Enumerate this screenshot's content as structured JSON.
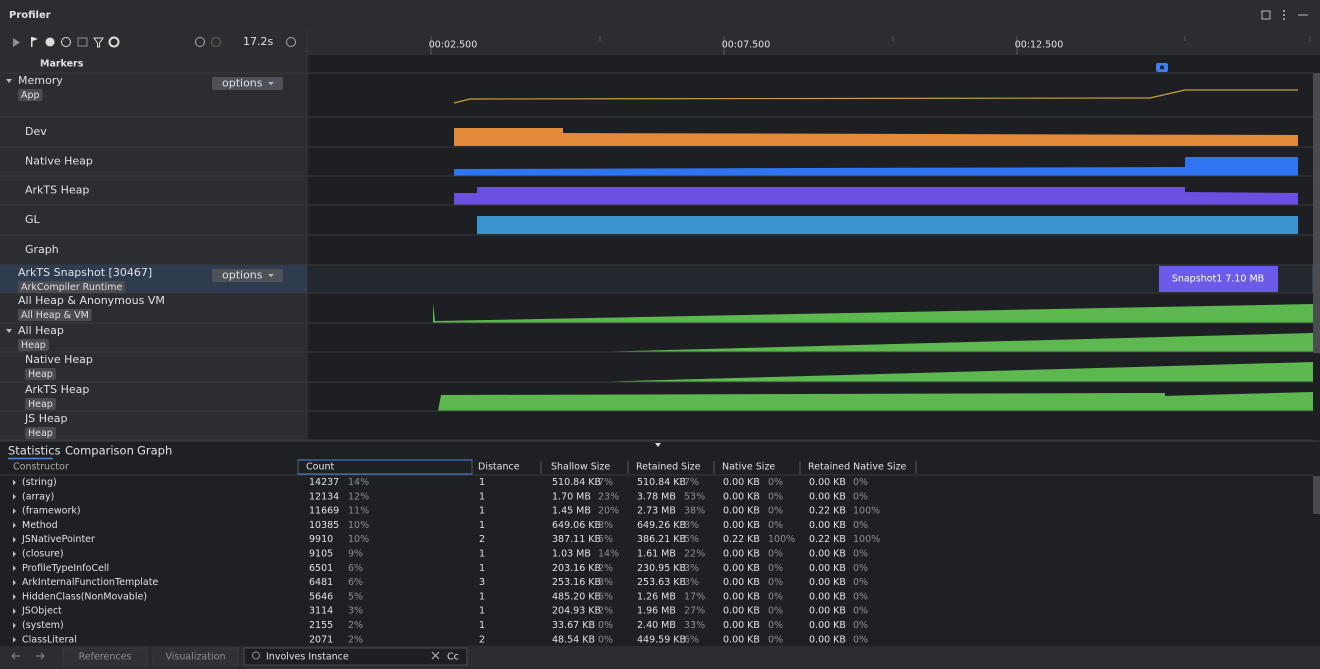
{
  "header": {
    "title": "Profiler"
  },
  "toolbar": {
    "time": "17.2s"
  },
  "timeline": {
    "ticks": [
      "00:02.500",
      "00:07.500",
      "00:12.500"
    ]
  },
  "tracks": [
    {
      "label": "Markers"
    },
    {
      "label": "Memory",
      "tag": "App",
      "options": "options"
    },
    {
      "label": "Dev"
    },
    {
      "label": "Native Heap"
    },
    {
      "label": "ArkTS Heap"
    },
    {
      "label": "GL"
    },
    {
      "label": "Graph"
    },
    {
      "label": "ArkTS Snapshot [30467]",
      "tag": "ArkCompiler Runtime",
      "options": "options"
    },
    {
      "label": "All Heap & Anonymous VM",
      "tag": "All Heap & VM"
    },
    {
      "label": "All Heap",
      "tag": "Heap"
    },
    {
      "label": "Native Heap",
      "tag": "Heap"
    },
    {
      "label": "ArkTS Heap",
      "tag": "Heap"
    },
    {
      "label": "JS Heap",
      "tag": "Heap"
    }
  ],
  "snapshot": {
    "label": "Snapshot1 7.10 MB"
  },
  "tabs": [
    "Statistics",
    "Comparison",
    "Graph"
  ],
  "table": {
    "columns": [
      "Constructor",
      "Count",
      "Distance",
      "Shallow Size",
      "Retained Size",
      "Native Size",
      "Retained Native Size"
    ],
    "rows": [
      [
        "(string)",
        "14237",
        "14%",
        "1",
        "510.84 KB",
        "7%",
        "510.84 KB",
        "7%",
        "0.00 KB",
        "0%",
        "0.00 KB",
        "0%"
      ],
      [
        "(array)",
        "12134",
        "12%",
        "1",
        "1.70 MB",
        "23%",
        "3.78 MB",
        "53%",
        "0.00 KB",
        "0%",
        "0.00 KB",
        "0%"
      ],
      [
        "(framework)",
        "11669",
        "11%",
        "1",
        "1.45 MB",
        "20%",
        "2.73 MB",
        "38%",
        "0.00 KB",
        "0%",
        "0.22 KB",
        "100%"
      ],
      [
        "Method",
        "10385",
        "10%",
        "1",
        "649.06 KB",
        "8%",
        "649.26 KB",
        "8%",
        "0.00 KB",
        "0%",
        "0.00 KB",
        "0%"
      ],
      [
        "JSNativePointer",
        "9910",
        "10%",
        "2",
        "387.11 KB",
        "5%",
        "386.21 KB",
        "5%",
        "0.22 KB",
        "100%",
        "0.22 KB",
        "100%"
      ],
      [
        "(closure)",
        "9105",
        "9%",
        "1",
        "1.03 MB",
        "14%",
        "1.61 MB",
        "22%",
        "0.00 KB",
        "0%",
        "0.00 KB",
        "0%"
      ],
      [
        "ProfileTypeInfoCell",
        "6501",
        "6%",
        "1",
        "203.16 KB",
        "2%",
        "230.95 KB",
        "3%",
        "0.00 KB",
        "0%",
        "0.00 KB",
        "0%"
      ],
      [
        "ArkInternalFunctionTemplate",
        "6481",
        "6%",
        "3",
        "253.16 KB",
        "3%",
        "253.63 KB",
        "3%",
        "0.00 KB",
        "0%",
        "0.00 KB",
        "0%"
      ],
      [
        "HiddenClass(NonMovable)",
        "5646",
        "5%",
        "1",
        "485.20 KB",
        "6%",
        "1.26 MB",
        "17%",
        "0.00 KB",
        "0%",
        "0.00 KB",
        "0%"
      ],
      [
        "JSObject",
        "3114",
        "3%",
        "1",
        "204.93 KB",
        "2%",
        "1.96 MB",
        "27%",
        "0.00 KB",
        "0%",
        "0.00 KB",
        "0%"
      ],
      [
        "(system)",
        "2155",
        "2%",
        "1",
        "33.67 KB",
        "0%",
        "2.40 MB",
        "33%",
        "0.00 KB",
        "0%",
        "0.00 KB",
        "0%"
      ],
      [
        "ClassLiteral",
        "2071",
        "2%",
        "2",
        "48.54 KB",
        "0%",
        "449.59 KB",
        "6%",
        "0.00 KB",
        "0%",
        "0.00 KB",
        "0%"
      ]
    ]
  },
  "footer": {
    "buttons": [
      "References",
      "Visualization"
    ],
    "search": "Involves Instance",
    "case": "Cc"
  }
}
